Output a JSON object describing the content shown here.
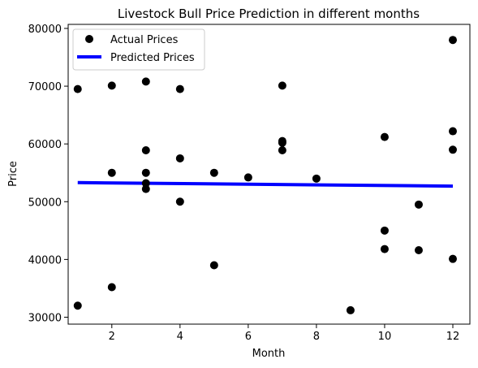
{
  "chart_data": {
    "type": "scatter",
    "title": "Livestock Bull Price Prediction in different months",
    "xlabel": "Month",
    "ylabel": "Price",
    "xlim": [
      0.72,
      12.5
    ],
    "ylim": [
      28800,
      80700
    ],
    "xticks": [
      2,
      4,
      6,
      8,
      10,
      12
    ],
    "yticks": [
      30000,
      40000,
      50000,
      60000,
      70000,
      80000
    ],
    "grid": false,
    "legend_position": "top-left",
    "series": [
      {
        "name": "Actual Prices",
        "kind": "scatter",
        "color": "#000000",
        "points": [
          {
            "x": 1,
            "y": 69500
          },
          {
            "x": 1,
            "y": 32000
          },
          {
            "x": 2,
            "y": 70100
          },
          {
            "x": 2,
            "y": 55000
          },
          {
            "x": 2,
            "y": 35200
          },
          {
            "x": 3,
            "y": 70800
          },
          {
            "x": 3,
            "y": 58900
          },
          {
            "x": 3,
            "y": 55000
          },
          {
            "x": 3,
            "y": 53200
          },
          {
            "x": 3,
            "y": 52200
          },
          {
            "x": 4,
            "y": 69500
          },
          {
            "x": 4,
            "y": 57500
          },
          {
            "x": 4,
            "y": 50000
          },
          {
            "x": 5,
            "y": 55000
          },
          {
            "x": 5,
            "y": 39000
          },
          {
            "x": 6,
            "y": 54200
          },
          {
            "x": 7,
            "y": 70100
          },
          {
            "x": 7,
            "y": 60500
          },
          {
            "x": 7,
            "y": 60200
          },
          {
            "x": 7,
            "y": 58900
          },
          {
            "x": 8,
            "y": 54000
          },
          {
            "x": 9,
            "y": 31200
          },
          {
            "x": 10,
            "y": 61200
          },
          {
            "x": 10,
            "y": 45000
          },
          {
            "x": 10,
            "y": 41800
          },
          {
            "x": 11,
            "y": 49500
          },
          {
            "x": 11,
            "y": 41600
          },
          {
            "x": 12,
            "y": 78000
          },
          {
            "x": 12,
            "y": 62200
          },
          {
            "x": 12,
            "y": 59000
          },
          {
            "x": 12,
            "y": 40100
          }
        ]
      },
      {
        "name": "Predicted Prices",
        "kind": "line",
        "color": "#0000ff",
        "points": [
          {
            "x": 1,
            "y": 53300
          },
          {
            "x": 12,
            "y": 52700
          }
        ]
      }
    ]
  }
}
